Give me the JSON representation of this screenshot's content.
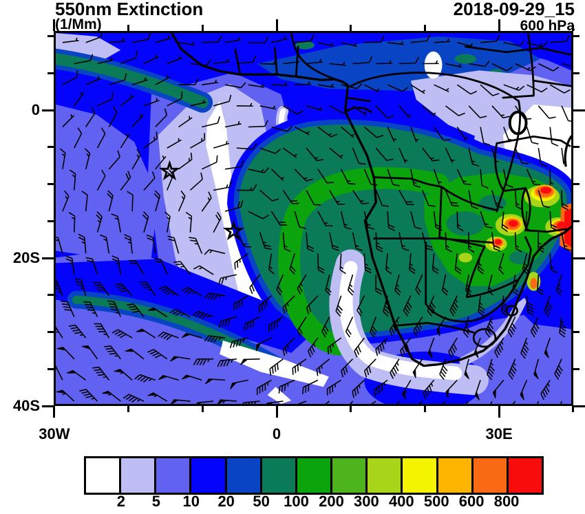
{
  "header": {
    "title": "550nm Extinction",
    "units_label": "(1/Mm)",
    "datetime": "2018-09-29_15",
    "level": "600 hPa"
  },
  "axes": {
    "x_ticks": [
      {
        "lon": -30,
        "label": "30W"
      },
      {
        "lon": -20
      },
      {
        "lon": -10
      },
      {
        "lon": 0,
        "label": "0"
      },
      {
        "lon": 10
      },
      {
        "lon": 20
      },
      {
        "lon": 30,
        "label": "30E"
      },
      {
        "lon": 40
      }
    ],
    "y_ticks": [
      {
        "lat": 10
      },
      {
        "lat": 5
      },
      {
        "lat": 0,
        "label": "0"
      },
      {
        "lat": -5
      },
      {
        "lat": -10
      },
      {
        "lat": -15
      },
      {
        "lat": -20,
        "label": "20S"
      },
      {
        "lat": -25
      },
      {
        "lat": -30
      },
      {
        "lat": -35
      },
      {
        "lat": -40,
        "label": "40S"
      }
    ]
  },
  "colorbar": {
    "labels": [
      "2",
      "5",
      "10",
      "20",
      "50",
      "100",
      "200",
      "300",
      "400",
      "500",
      "600",
      "800"
    ],
    "colors": [
      "#ffffff",
      "#bebef5",
      "#6262f2",
      "#0404fc",
      "#0844c4",
      "#0a7a58",
      "#0ca40c",
      "#4eb41e",
      "#a8d41a",
      "#f4f400",
      "#fcb400",
      "#fa6a14",
      "#f80c0c"
    ]
  },
  "wind_barbs": {
    "grid_dx": 34,
    "grid_dy": 31,
    "staff_len": 24,
    "high_center": {
      "lon": -6.4,
      "lat": -17.2
    },
    "description": "600 hPa wind barbs: easterlies north of the equator, anticyclonic (counterclockwise) circulation around the South Atlantic subtropical high, strong westerlies with pennant barbs in the far south"
  },
  "chart_data": {
    "type": "heatmap",
    "subtype": "filled-contour-geographic-map-with-wind-barbs",
    "title": "550nm Extinction",
    "units": "1/Mm",
    "valid_time": "2018-09-29_15",
    "pressure_level": "600 hPa",
    "map_extent": {
      "lon_min": -30,
      "lon_max": 40,
      "lat_min": -40,
      "lat_max": 10.7
    },
    "x_tick_labels": [
      "30W",
      "0",
      "30E"
    ],
    "y_tick_labels": [
      "0",
      "20S",
      "40S"
    ],
    "contour_levels_1_per_Mm": [
      2,
      5,
      10,
      20,
      50,
      100,
      200,
      300,
      400,
      500,
      600,
      800
    ],
    "palette": [
      "#ffffff",
      "#bebef5",
      "#6262f2",
      "#0404fc",
      "#0844c4",
      "#0a7a58",
      "#0ca40c",
      "#4eb41e",
      "#a8d41a",
      "#f4f400",
      "#fcb400",
      "#fa6a14",
      "#f80c0c"
    ],
    "legend_position": "bottom",
    "overlays": [
      "wind barbs",
      "coastlines",
      "country borders",
      "star markers"
    ],
    "markers": [
      {
        "symbol": "star",
        "lon": -14.6,
        "lat": -8.2
      },
      {
        "symbol": "star",
        "lon": -5.9,
        "lat": -16.4
      }
    ],
    "features": [
      {
        "region": "Biomass-burning smoke plume over SE Atlantic off Angola (green hook)",
        "approx_value_1_per_Mm": "100-200"
      },
      {
        "region": "Southern Africa interior (Angola/Zambia/Zimbabwe) smoke shield",
        "approx_value_1_per_Mm": "50-200"
      },
      {
        "region": "Fire hotspot cores over Mozambique/Zimbabwe/Malawi near 30-40E, 10-20S",
        "approx_value_1_per_Mm": "500->800"
      },
      {
        "region": "Clean diagonal band through South Atlantic high (star-marked)",
        "approx_value_1_per_Mm": "<2-5"
      },
      {
        "region": "Clean offshore band along Namibia coast and south coast of South Africa",
        "approx_value_1_per_Mm": "<2-5"
      },
      {
        "region": "Clean air over Kenya / East African highlands",
        "approx_value_1_per_Mm": "<2-5"
      },
      {
        "region": "Tropical North Africa and Gulf of Guinea",
        "approx_value_1_per_Mm": "10-50"
      },
      {
        "region": "Southern Ocean southwest corner",
        "approx_value_1_per_Mm": "5-20"
      }
    ]
  }
}
